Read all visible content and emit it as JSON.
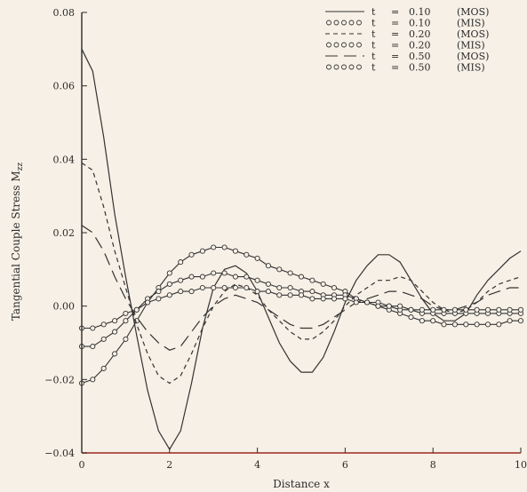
{
  "chart_data": {
    "type": "line",
    "xlabel": "Distance x",
    "ylabel": "Tangential Couple Stress M",
    "ylabel_sub": "zz",
    "xlim": [
      0,
      10
    ],
    "ylim": [
      -0.04,
      0.08
    ],
    "xticks": [
      0,
      2,
      4,
      6,
      8,
      10
    ],
    "xtick_labels": [
      "0",
      "2",
      "4",
      "6",
      "8",
      "10"
    ],
    "yticks": [
      -0.04,
      -0.02,
      0.0,
      0.02,
      0.04,
      0.06,
      0.08
    ],
    "ytick_labels": [
      "−0.04",
      "−0.02",
      "0.00",
      "0.02",
      "0.04",
      "0.06",
      "0.08"
    ],
    "legend_position": "top-right",
    "legend": [
      {
        "t_label": "t",
        "eq": "=",
        "value": "0.10",
        "method": "(MOS)",
        "style": "solid"
      },
      {
        "t_label": "t",
        "eq": "=",
        "value": "0.10",
        "method": "(MIS)",
        "style": "circles"
      },
      {
        "t_label": "t",
        "eq": "=",
        "value": "0.20",
        "method": "(MOS)",
        "style": "short-dash"
      },
      {
        "t_label": "t",
        "eq": "=",
        "value": "0.20",
        "method": "(MIS)",
        "style": "circles"
      },
      {
        "t_label": "t",
        "eq": "=",
        "value": "0.50",
        "method": "(MOS)",
        "style": "long-dash"
      },
      {
        "t_label": "t",
        "eq": "=",
        "value": "0.50",
        "method": "(MIS)",
        "style": "circles"
      }
    ],
    "series": [
      {
        "style": "solid",
        "x": [
          0,
          0.25,
          0.5,
          0.75,
          1.0,
          1.25,
          1.5,
          1.75,
          2.0,
          2.25,
          2.5,
          2.75,
          3.0,
          3.25,
          3.5,
          3.75,
          4.0,
          4.25,
          4.5,
          4.75,
          5.0,
          5.25,
          5.5,
          5.75,
          6.0,
          6.25,
          6.5,
          6.75,
          7.0,
          7.25,
          7.5,
          7.75,
          8.0,
          8.25,
          8.5,
          8.75,
          9.0,
          9.25,
          9.5,
          9.75,
          10.0
        ],
        "y": [
          0.07,
          0.064,
          0.046,
          0.025,
          0.008,
          -0.008,
          -0.023,
          -0.034,
          -0.039,
          -0.034,
          -0.021,
          -0.006,
          0.005,
          0.01,
          0.011,
          0.009,
          0.004,
          -0.003,
          -0.01,
          -0.015,
          -0.018,
          -0.018,
          -0.014,
          -0.007,
          0.001,
          0.007,
          0.011,
          0.014,
          0.014,
          0.012,
          0.007,
          0.002,
          -0.002,
          -0.004,
          -0.004,
          -0.002,
          0.003,
          0.007,
          0.01,
          0.013,
          0.015
        ]
      },
      {
        "style": "circles",
        "x": [
          0,
          0.25,
          0.5,
          0.75,
          1.0,
          1.25,
          1.5,
          1.75,
          2.0,
          2.25,
          2.5,
          2.75,
          3.0,
          3.25,
          3.5,
          3.75,
          4.0,
          4.25,
          4.5,
          4.75,
          5.0,
          5.25,
          5.5,
          5.75,
          6.0,
          6.25,
          6.5,
          6.75,
          7.0,
          7.25,
          7.5,
          7.75,
          8.0,
          8.25,
          8.5,
          8.75,
          9.0,
          9.25,
          9.5,
          9.75,
          10.0
        ],
        "y": [
          -0.021,
          -0.02,
          -0.017,
          -0.013,
          -0.009,
          -0.004,
          0.001,
          0.005,
          0.009,
          0.012,
          0.014,
          0.015,
          0.016,
          0.016,
          0.015,
          0.014,
          0.013,
          0.011,
          0.01,
          0.009,
          0.008,
          0.007,
          0.006,
          0.005,
          0.004,
          0.002,
          0.001,
          0.0,
          -0.001,
          -0.002,
          -0.003,
          -0.004,
          -0.004,
          -0.005,
          -0.005,
          -0.005,
          -0.005,
          -0.005,
          -0.005,
          -0.004,
          -0.004
        ]
      },
      {
        "style": "short-dash",
        "x": [
          0,
          0.25,
          0.5,
          0.75,
          1.0,
          1.25,
          1.5,
          1.75,
          2.0,
          2.25,
          2.5,
          2.75,
          3.0,
          3.25,
          3.5,
          3.75,
          4.0,
          4.25,
          4.5,
          4.75,
          5.0,
          5.25,
          5.5,
          5.75,
          6.0,
          6.25,
          6.5,
          6.75,
          7.0,
          7.25,
          7.5,
          7.75,
          8.0,
          8.25,
          8.5,
          8.75,
          9.0,
          9.25,
          9.5,
          9.75,
          10.0
        ],
        "y": [
          0.039,
          0.037,
          0.027,
          0.015,
          0.005,
          -0.005,
          -0.013,
          -0.019,
          -0.021,
          -0.019,
          -0.013,
          -0.006,
          0.0,
          0.004,
          0.006,
          0.005,
          0.003,
          -0.001,
          -0.004,
          -0.007,
          -0.009,
          -0.009,
          -0.007,
          -0.004,
          0.0,
          0.003,
          0.005,
          0.007,
          0.007,
          0.008,
          0.007,
          0.004,
          0.001,
          -0.001,
          -0.002,
          -0.001,
          0.001,
          0.004,
          0.006,
          0.007,
          0.008
        ]
      },
      {
        "style": "circles",
        "x": [
          0,
          0.25,
          0.5,
          0.75,
          1.0,
          1.25,
          1.5,
          1.75,
          2.0,
          2.25,
          2.5,
          2.75,
          3.0,
          3.25,
          3.5,
          3.75,
          4.0,
          4.25,
          4.5,
          4.75,
          5.0,
          5.25,
          5.5,
          5.75,
          6.0,
          6.25,
          6.5,
          6.75,
          7.0,
          7.25,
          7.5,
          7.75,
          8.0,
          8.25,
          8.5,
          8.75,
          9.0,
          9.25,
          9.5,
          9.75,
          10.0
        ],
        "y": [
          -0.011,
          -0.011,
          -0.009,
          -0.007,
          -0.004,
          -0.001,
          0.002,
          0.004,
          0.006,
          0.007,
          0.008,
          0.008,
          0.009,
          0.009,
          0.008,
          0.008,
          0.007,
          0.006,
          0.005,
          0.005,
          0.004,
          0.004,
          0.003,
          0.003,
          0.003,
          0.002,
          0.001,
          0.001,
          0.0,
          -0.001,
          -0.001,
          -0.002,
          -0.002,
          -0.002,
          -0.002,
          -0.002,
          -0.002,
          -0.002,
          -0.002,
          -0.002,
          -0.002
        ]
      },
      {
        "style": "long-dash",
        "x": [
          0,
          0.25,
          0.5,
          0.75,
          1.0,
          1.25,
          1.5,
          1.75,
          2.0,
          2.25,
          2.5,
          2.75,
          3.0,
          3.25,
          3.5,
          3.75,
          4.0,
          4.25,
          4.5,
          4.75,
          5.0,
          5.25,
          5.5,
          5.75,
          6.0,
          6.25,
          6.5,
          6.75,
          7.0,
          7.25,
          7.5,
          7.75,
          8.0,
          8.25,
          8.5,
          8.75,
          9.0,
          9.25,
          9.5,
          9.75,
          10.0
        ],
        "y": [
          0.022,
          0.02,
          0.015,
          0.008,
          0.002,
          -0.003,
          -0.007,
          -0.01,
          -0.012,
          -0.011,
          -0.007,
          -0.003,
          0.0,
          0.002,
          0.003,
          0.002,
          0.001,
          -0.001,
          -0.003,
          -0.005,
          -0.006,
          -0.006,
          -0.005,
          -0.003,
          -0.001,
          0.001,
          0.002,
          0.003,
          0.004,
          0.004,
          0.003,
          0.002,
          0.0,
          -0.001,
          -0.001,
          0.0,
          0.001,
          0.003,
          0.004,
          0.005,
          0.005
        ]
      },
      {
        "style": "circles",
        "x": [
          0,
          0.25,
          0.5,
          0.75,
          1.0,
          1.25,
          1.5,
          1.75,
          2.0,
          2.25,
          2.5,
          2.75,
          3.0,
          3.25,
          3.5,
          3.75,
          4.0,
          4.25,
          4.5,
          4.75,
          5.0,
          5.25,
          5.5,
          5.75,
          6.0,
          6.25,
          6.5,
          6.75,
          7.0,
          7.25,
          7.5,
          7.75,
          8.0,
          8.25,
          8.5,
          8.75,
          9.0,
          9.25,
          9.5,
          9.75,
          10.0
        ],
        "y": [
          -0.006,
          -0.006,
          -0.005,
          -0.004,
          -0.002,
          -0.001,
          0.001,
          0.002,
          0.003,
          0.004,
          0.004,
          0.005,
          0.005,
          0.005,
          0.005,
          0.005,
          0.004,
          0.004,
          0.003,
          0.003,
          0.003,
          0.002,
          0.002,
          0.002,
          0.002,
          0.001,
          0.001,
          0.0,
          0.0,
          0.0,
          -0.001,
          -0.001,
          -0.001,
          -0.001,
          -0.001,
          -0.001,
          -0.001,
          -0.001,
          -0.001,
          -0.001,
          -0.001
        ]
      }
    ]
  }
}
